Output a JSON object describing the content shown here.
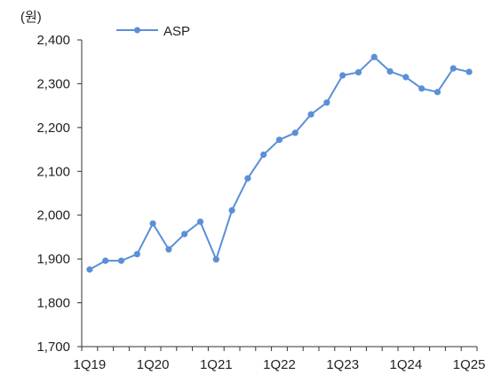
{
  "chart_data": {
    "type": "line",
    "title": "",
    "unit_label": "(원)",
    "xlabel": "",
    "ylabel": "",
    "ylim": [
      1700,
      2400
    ],
    "yticks": [
      1700,
      1800,
      1900,
      2000,
      2100,
      2200,
      2300,
      2400
    ],
    "ytick_labels": [
      "1,700",
      "1,800",
      "1,900",
      "2,000",
      "2,100",
      "2,200",
      "2,300",
      "2,400"
    ],
    "x": [
      "1Q19",
      "2Q19",
      "3Q19",
      "4Q19",
      "1Q20",
      "2Q20",
      "3Q20",
      "4Q20",
      "1Q21",
      "2Q21",
      "3Q21",
      "4Q21",
      "1Q22",
      "2Q22",
      "3Q22",
      "4Q22",
      "1Q23",
      "2Q23",
      "3Q23",
      "4Q23",
      "1Q24",
      "2Q24",
      "3Q24",
      "4Q24",
      "1Q25"
    ],
    "x_tick_labels": [
      "1Q19",
      "1Q20",
      "1Q21",
      "1Q22",
      "1Q23",
      "1Q24",
      "1Q25"
    ],
    "series": [
      {
        "name": "ASP",
        "color": "#5b8fd6",
        "values": [
          1876,
          1896,
          1896,
          1911,
          1981,
          1922,
          1957,
          1985,
          1899,
          2011,
          2084,
          2138,
          2172,
          2188,
          2230,
          2257,
          2319,
          2326,
          2361,
          2328,
          2315,
          2289,
          2281,
          2335,
          2327
        ]
      }
    ],
    "grid": false,
    "legend_position": "top-left",
    "marker": "circle"
  }
}
